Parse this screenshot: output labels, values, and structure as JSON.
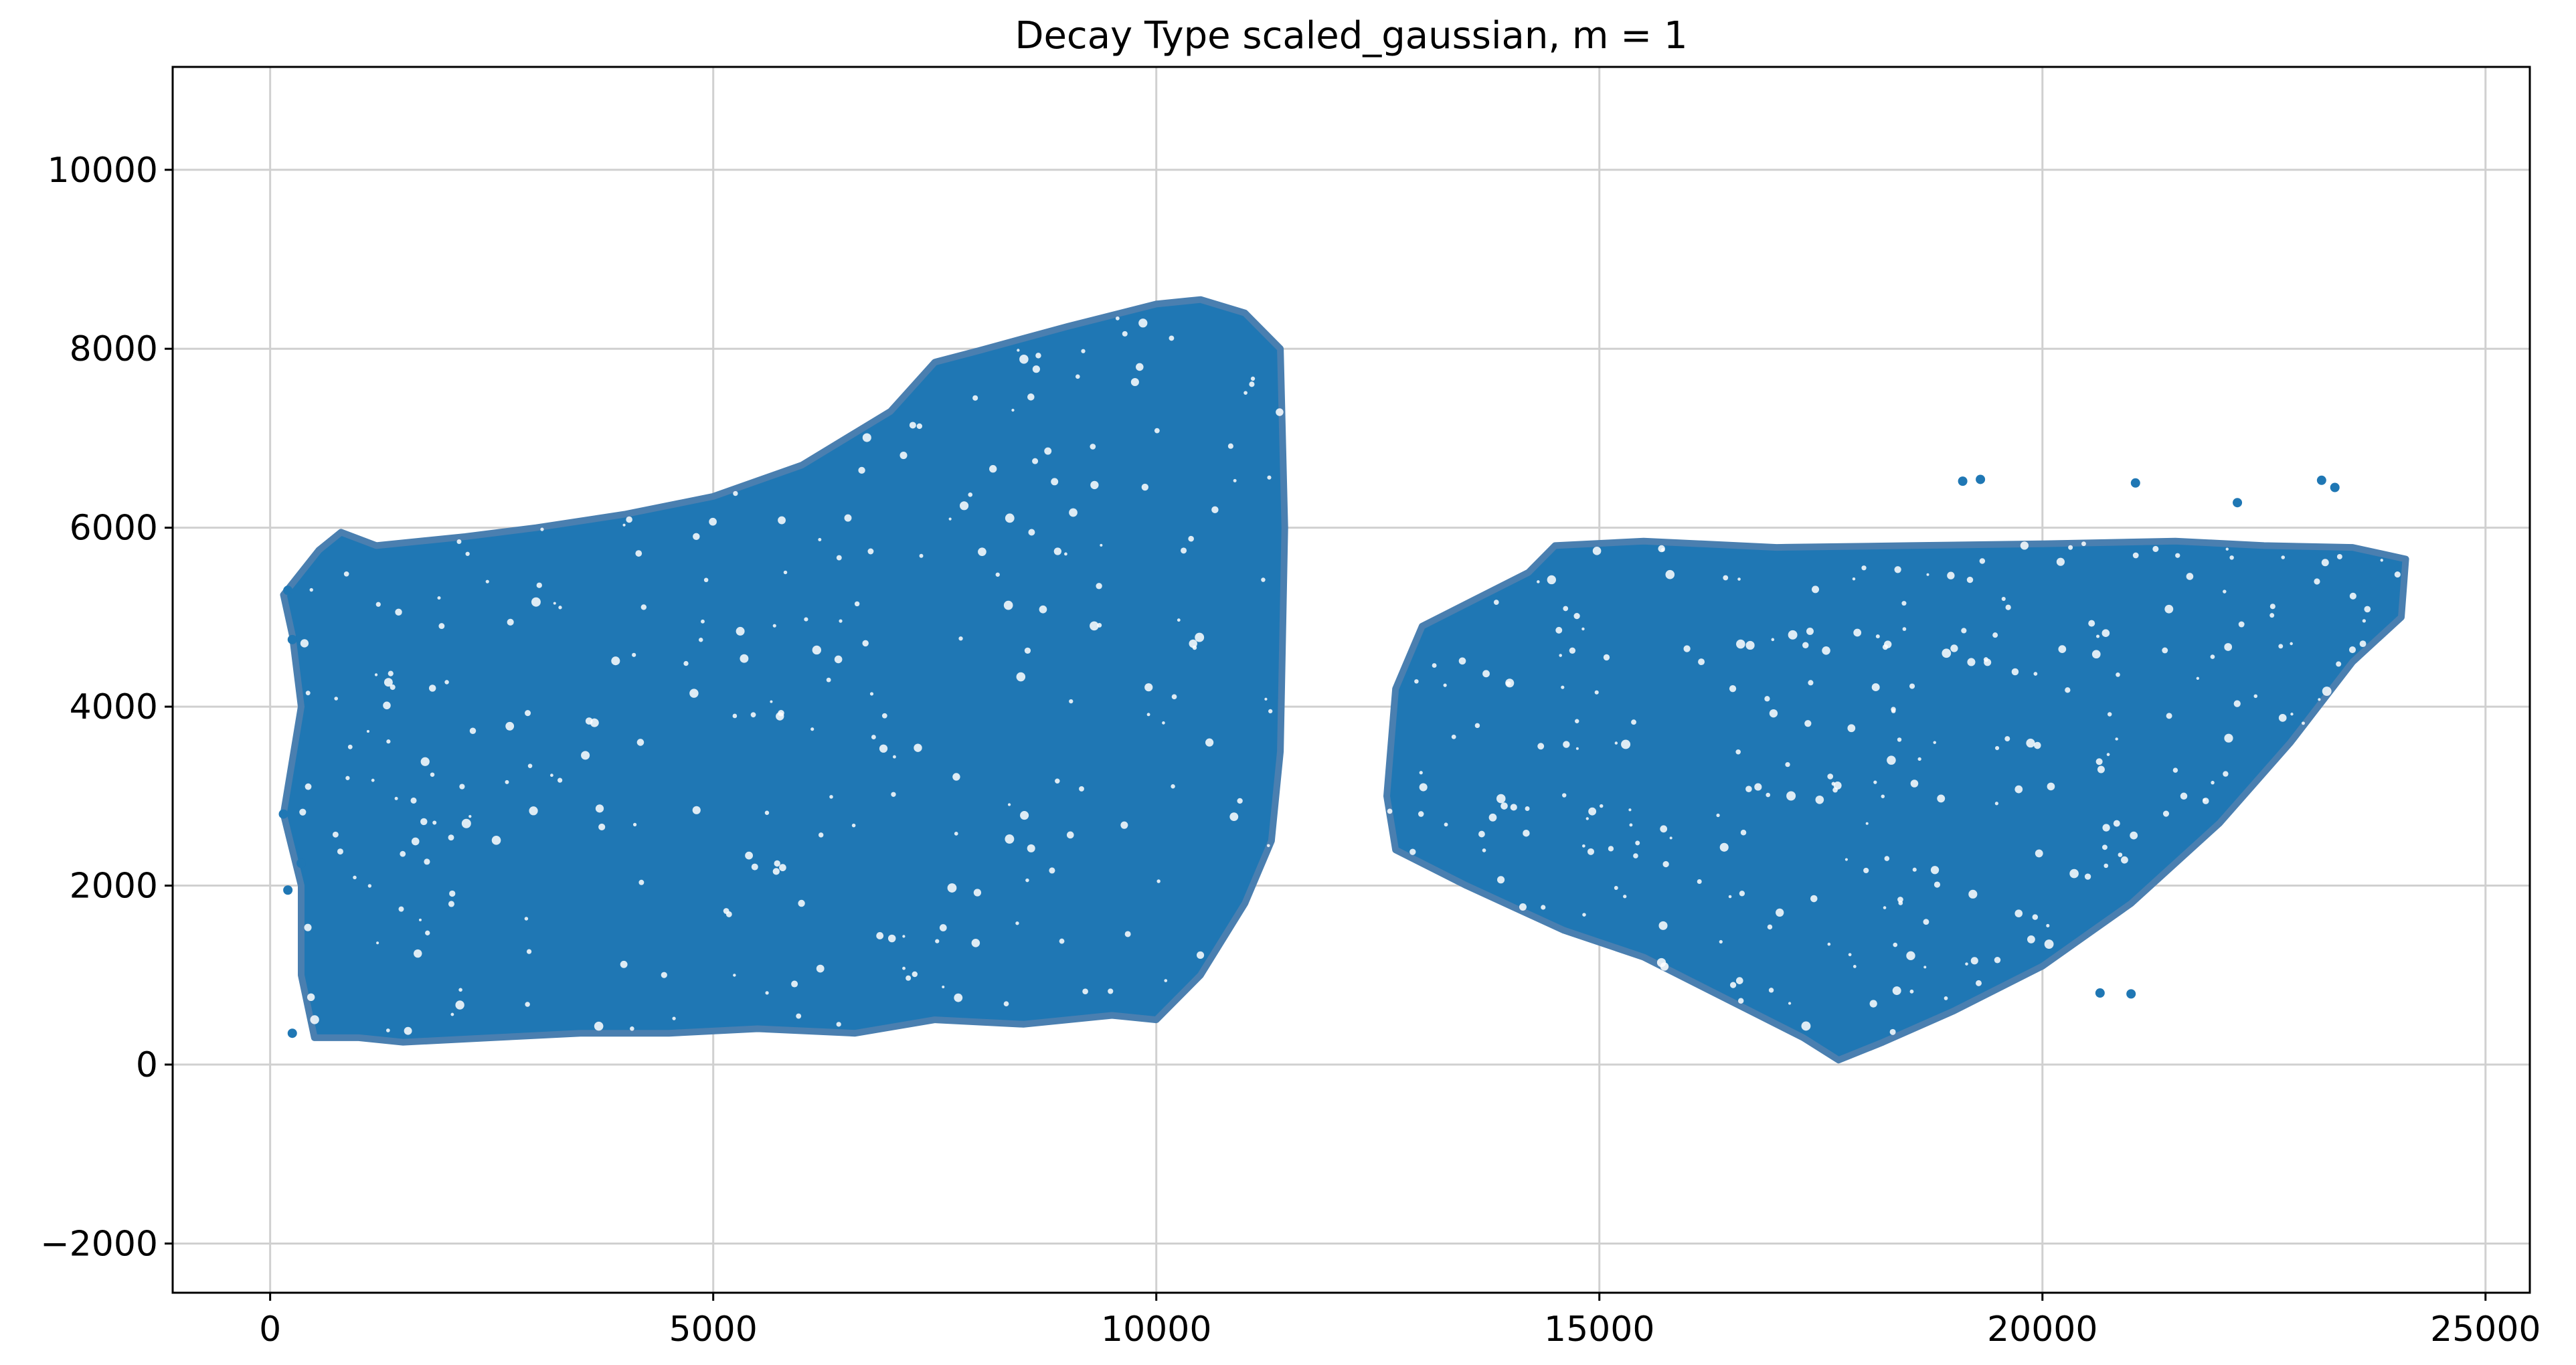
{
  "chart_data": {
    "type": "scatter",
    "title": "Decay Type scaled_gaussian, m = 1",
    "xlabel": "",
    "ylabel": "",
    "xlim": [
      -1100,
      25500
    ],
    "ylim": [
      -2550,
      11150
    ],
    "x_ticks": [
      0,
      5000,
      10000,
      15000,
      20000,
      25000
    ],
    "x_tick_labels": [
      "0",
      "5000",
      "10000",
      "15000",
      "20000",
      "25000"
    ],
    "y_ticks": [
      -2000,
      0,
      2000,
      4000,
      6000,
      8000,
      10000
    ],
    "y_tick_labels": [
      "−2000",
      "0",
      "2000",
      "4000",
      "6000",
      "8000",
      "10000"
    ],
    "grid": true,
    "legend": "none",
    "series_color": "#1f77b4",
    "edge_color": "#4a7fb0",
    "regions": [
      {
        "outline": [
          [
            150,
            5250
          ],
          [
            550,
            5750
          ],
          [
            800,
            5950
          ],
          [
            1200,
            5800
          ],
          [
            2200,
            5900
          ],
          [
            3000,
            6000
          ],
          [
            4000,
            6150
          ],
          [
            5000,
            6350
          ],
          [
            6000,
            6700
          ],
          [
            7000,
            7300
          ],
          [
            7500,
            7850
          ],
          [
            8000,
            7980
          ],
          [
            9000,
            8250
          ],
          [
            10000,
            8500
          ],
          [
            10500,
            8550
          ],
          [
            11000,
            8400
          ],
          [
            11400,
            8000
          ],
          [
            11450,
            6000
          ],
          [
            11400,
            3500
          ],
          [
            11300,
            2500
          ],
          [
            11000,
            1800
          ],
          [
            10500,
            1000
          ],
          [
            10000,
            500
          ],
          [
            9500,
            550
          ],
          [
            8500,
            450
          ],
          [
            7500,
            500
          ],
          [
            6600,
            350
          ],
          [
            5500,
            400
          ],
          [
            4500,
            350
          ],
          [
            3500,
            350
          ],
          [
            2500,
            300
          ],
          [
            1500,
            250
          ],
          [
            1000,
            300
          ],
          [
            500,
            300
          ],
          [
            350,
            1000
          ],
          [
            350,
            2000
          ],
          [
            150,
            2800
          ],
          [
            350,
            4000
          ],
          [
            250,
            4800
          ]
        ]
      },
      {
        "outline": [
          [
            12700,
            4200
          ],
          [
            13000,
            4900
          ],
          [
            13600,
            5200
          ],
          [
            14200,
            5500
          ],
          [
            14500,
            5800
          ],
          [
            15500,
            5850
          ],
          [
            17000,
            5780
          ],
          [
            18500,
            5800
          ],
          [
            20000,
            5820
          ],
          [
            21500,
            5850
          ],
          [
            22500,
            5800
          ],
          [
            23500,
            5780
          ],
          [
            24100,
            5650
          ],
          [
            24050,
            5000
          ],
          [
            23500,
            4500
          ],
          [
            22800,
            3600
          ],
          [
            22000,
            2700
          ],
          [
            21000,
            1800
          ],
          [
            20000,
            1100
          ],
          [
            19000,
            600
          ],
          [
            18200,
            250
          ],
          [
            17700,
            50
          ],
          [
            17300,
            300
          ],
          [
            16500,
            700
          ],
          [
            15500,
            1200
          ],
          [
            14600,
            1500
          ],
          [
            13500,
            2000
          ],
          [
            12700,
            2400
          ],
          [
            12600,
            3000
          ]
        ]
      }
    ],
    "outlier_points": [
      [
        200,
        5300
      ],
      [
        250,
        4750
      ],
      [
        150,
        2800
      ],
      [
        350,
        2250
      ],
      [
        200,
        1950
      ],
      [
        250,
        350
      ],
      [
        19100,
        6520
      ],
      [
        19300,
        6540
      ],
      [
        21050,
        6500
      ],
      [
        22200,
        6280
      ],
      [
        23150,
        6530
      ],
      [
        23300,
        6450
      ],
      [
        20650,
        800
      ],
      [
        21000,
        790
      ]
    ]
  }
}
